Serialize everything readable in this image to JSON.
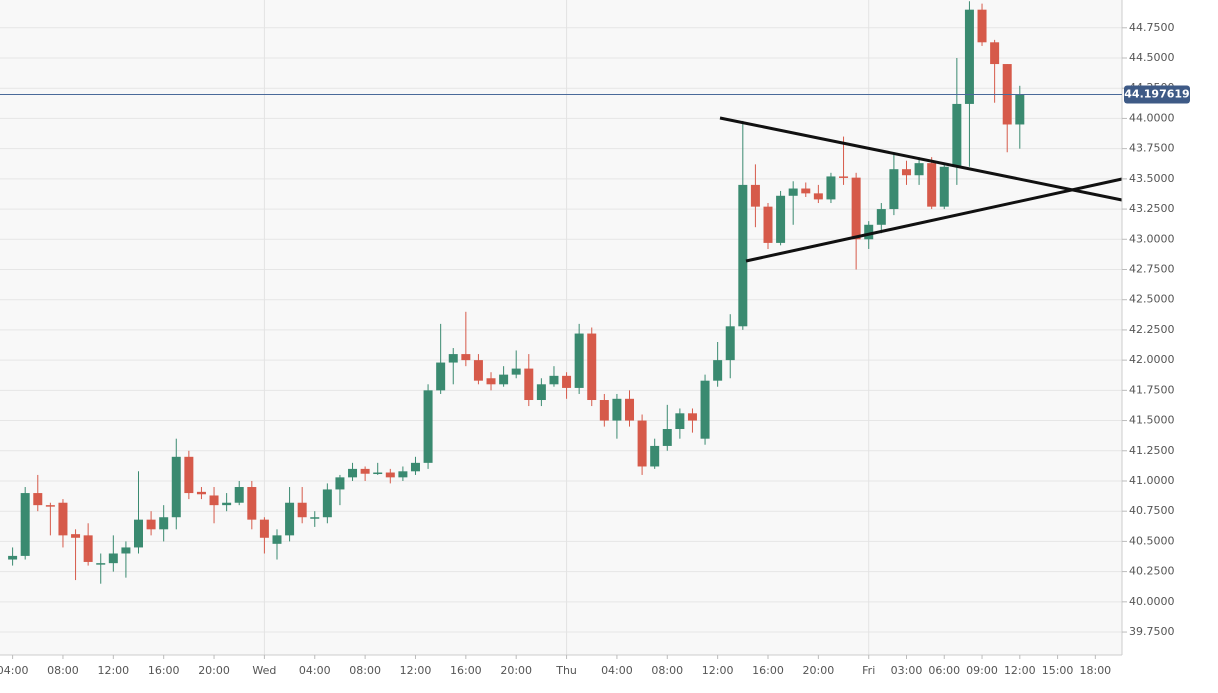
{
  "chart_data": {
    "type": "candlestick",
    "categories": [
      "04:00",
      null,
      null,
      null,
      "08:00",
      null,
      null,
      null,
      "12:00",
      null,
      null,
      null,
      "16:00",
      null,
      null,
      null,
      "20:00",
      null,
      null,
      null,
      "Wed",
      null,
      null,
      null,
      "04:00",
      null,
      null,
      null,
      "08:00",
      null,
      null,
      null,
      "12:00",
      null,
      null,
      null,
      "16:00",
      null,
      null,
      null,
      "20:00",
      null,
      null,
      null,
      "Thu",
      null,
      null,
      null,
      "04:00",
      null,
      null,
      null,
      "08:00",
      null,
      null,
      null,
      "12:00",
      null,
      null,
      null,
      "16:00",
      null,
      null,
      null,
      "20:00",
      null,
      null,
      null,
      "Fri",
      null,
      null,
      "03:00",
      null,
      null,
      "06:00",
      null,
      null,
      "09:00",
      null,
      null,
      "12:00",
      null,
      null,
      "15:00",
      null,
      null,
      "18:00"
    ],
    "open": [
      40.35,
      40.38,
      40.9,
      40.8,
      40.82,
      40.56,
      40.55,
      40.32,
      40.32,
      40.4,
      40.45,
      40.68,
      40.6,
      40.7,
      41.2,
      40.91,
      40.88,
      40.8,
      40.82,
      40.95,
      40.68,
      40.48,
      40.55,
      40.82,
      40.7,
      40.7,
      40.93,
      41.03,
      41.1,
      41.07,
      41.07,
      41.03,
      41.08,
      41.15,
      41.75,
      41.98,
      42.05,
      42.0,
      41.85,
      41.8,
      41.88,
      41.93,
      41.67,
      41.8,
      41.87,
      41.77,
      42.22,
      41.67,
      41.5,
      41.68,
      41.5,
      41.12,
      41.29,
      41.43,
      41.56,
      41.35,
      41.83,
      42.0,
      42.28,
      43.45,
      43.27,
      42.97,
      43.36,
      43.42,
      43.38,
      43.33,
      43.52,
      43.51,
      43.0,
      43.12,
      43.25,
      43.58,
      43.53,
      43.63,
      43.27,
      43.6,
      44.12,
      44.9,
      44.63,
      44.45,
      43.95,
      null,
      null,
      null,
      null,
      null,
      null
    ],
    "high": [
      40.45,
      40.95,
      41.05,
      40.82,
      40.85,
      40.6,
      40.65,
      40.4,
      40.55,
      40.5,
      41.08,
      40.75,
      40.8,
      41.35,
      41.25,
      40.95,
      40.95,
      40.9,
      41.0,
      41.0,
      40.7,
      40.6,
      40.95,
      40.95,
      40.75,
      40.98,
      41.05,
      41.15,
      41.12,
      41.15,
      41.1,
      41.12,
      41.2,
      41.8,
      42.3,
      42.1,
      42.4,
      42.05,
      41.9,
      41.95,
      42.08,
      42.05,
      41.85,
      41.95,
      41.9,
      42.3,
      42.27,
      41.72,
      41.72,
      41.75,
      41.55,
      41.35,
      41.63,
      41.6,
      41.6,
      41.88,
      42.15,
      42.38,
      43.98,
      43.62,
      43.3,
      43.4,
      43.48,
      43.47,
      43.45,
      43.55,
      43.85,
      43.55,
      43.15,
      43.3,
      43.7,
      43.65,
      43.68,
      43.68,
      43.62,
      44.5,
      44.97,
      44.95,
      44.65,
      44.45,
      44.27,
      null,
      null,
      null,
      null,
      null,
      null
    ],
    "low": [
      40.3,
      40.35,
      40.75,
      40.55,
      40.45,
      40.18,
      40.3,
      40.15,
      40.25,
      40.2,
      40.4,
      40.55,
      40.5,
      40.6,
      40.85,
      40.85,
      40.65,
      40.75,
      40.8,
      40.6,
      40.4,
      40.35,
      40.5,
      40.65,
      40.62,
      40.65,
      40.8,
      41.0,
      41.0,
      41.05,
      40.98,
      41.0,
      41.05,
      41.1,
      41.72,
      41.8,
      41.95,
      41.8,
      41.75,
      41.78,
      41.85,
      41.62,
      41.62,
      41.78,
      41.68,
      41.72,
      41.62,
      41.45,
      41.35,
      41.45,
      41.05,
      41.1,
      41.25,
      41.35,
      41.4,
      41.3,
      41.78,
      41.85,
      42.25,
      43.1,
      42.92,
      42.95,
      43.12,
      43.35,
      43.3,
      43.3,
      43.45,
      42.75,
      42.92,
      43.05,
      43.2,
      43.45,
      43.45,
      43.25,
      43.25,
      43.45,
      43.6,
      44.6,
      44.13,
      43.72,
      43.75,
      null,
      null,
      null,
      null,
      null,
      null
    ],
    "close": [
      40.38,
      40.9,
      40.8,
      40.79,
      40.55,
      40.53,
      40.33,
      40.32,
      40.4,
      40.45,
      40.68,
      40.6,
      40.7,
      41.2,
      40.9,
      40.89,
      40.8,
      40.82,
      40.95,
      40.68,
      40.53,
      40.55,
      40.82,
      40.7,
      40.7,
      40.93,
      41.03,
      41.1,
      41.06,
      41.07,
      41.03,
      41.08,
      41.15,
      41.75,
      41.98,
      42.05,
      42.0,
      41.83,
      41.8,
      41.88,
      41.93,
      41.67,
      41.8,
      41.87,
      41.77,
      42.22,
      41.67,
      41.5,
      41.68,
      41.5,
      41.12,
      41.29,
      41.43,
      41.56,
      41.5,
      41.83,
      42.0,
      42.28,
      43.45,
      43.27,
      42.97,
      43.36,
      43.42,
      43.38,
      43.33,
      43.52,
      43.51,
      43.0,
      43.12,
      43.25,
      43.58,
      43.53,
      43.63,
      43.27,
      43.6,
      44.12,
      44.9,
      44.63,
      44.45,
      43.95,
      44.2,
      null,
      null,
      null,
      null,
      null,
      null
    ],
    "up_color": "#3a8a70",
    "down_color": "#d65a4a",
    "current_price": 44.197619,
    "ylim": [
      39.56,
      44.98
    ],
    "yticks": [
      {
        "value": 39.75,
        "label": "39.7500"
      },
      {
        "value": 40.0,
        "label": "40.0000"
      },
      {
        "value": 40.25,
        "label": "40.2500"
      },
      {
        "value": 40.5,
        "label": "40.5000"
      },
      {
        "value": 40.75,
        "label": "40.7500"
      },
      {
        "value": 41.0,
        "label": "41.0000"
      },
      {
        "value": 41.25,
        "label": "41.2500"
      },
      {
        "value": 41.5,
        "label": "41.5000"
      },
      {
        "value": 41.75,
        "label": "41.7500"
      },
      {
        "value": 42.0,
        "label": "42.0000"
      },
      {
        "value": 42.25,
        "label": "42.2500"
      },
      {
        "value": 42.5,
        "label": "42.5000"
      },
      {
        "value": 42.75,
        "label": "42.7500"
      },
      {
        "value": 43.0,
        "label": "43.0000"
      },
      {
        "value": 43.25,
        "label": "43.2500"
      },
      {
        "value": 43.5,
        "label": "43.5000"
      },
      {
        "value": 43.75,
        "label": "43.7500"
      },
      {
        "value": 44.0,
        "label": "44.0000"
      },
      {
        "value": 44.25,
        "label": "44.2500"
      },
      {
        "value": 44.5,
        "label": "44.5000"
      },
      {
        "value": 44.75,
        "label": "44.7500"
      }
    ],
    "grid": true
  }
}
